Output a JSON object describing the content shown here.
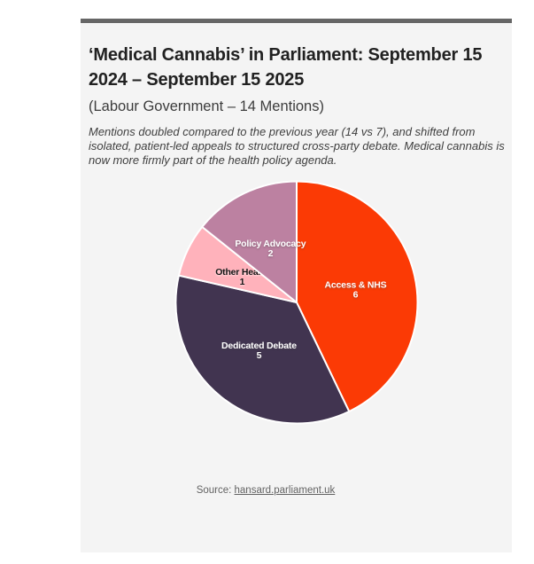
{
  "header": {
    "title": "‘Medical Cannabis’ in Parliament: September 15 2024 – September 15 2025",
    "subtitle": "(Labour Government – 14 Mentions)",
    "description": "Mentions doubled compared to the previous year (14 vs 7), and shifted from isolated, patient-led appeals to structured cross-party debate. Medical cannabis is now more firmly part of the health policy agenda."
  },
  "footer": {
    "source_label": "Source: ",
    "source_link": "hansard.parliament.uk"
  },
  "colors": {
    "page-bg": "#FFFFFF",
    "card-bg": "#F4F4F4",
    "card-top-border": "#666666",
    "title-text": "#212121",
    "subtitle-text": "#3C3C3C",
    "description-text": "#3F3F3F",
    "source-text": "#636363"
  },
  "chart_data": {
    "type": "pie",
    "title": "‘Medical Cannabis’ in Parliament: September 15 2024 – September 15 2025",
    "subtitle": "(Labour Government – 14 Mentions)",
    "total_mentions": 14,
    "start_angle_deg": 0,
    "direction": "clockwise",
    "slice_gap_stroke": "#FFFFFF",
    "label_radius_fraction": 0.5,
    "slices": [
      {
        "label": "Access & NHS",
        "value": 6,
        "color": "#FB3A05",
        "label_color": "#FFFFFF",
        "label_shadow": "rgba(70,70,70,0.45)"
      },
      {
        "label": "Dedicated Debate",
        "value": 5,
        "color": "#413450",
        "label_color": "#FFFFFF",
        "label_shadow": "rgba(70,70,70,0.45)"
      },
      {
        "label": "Other Health",
        "value": 1,
        "color": "#FFB2BB",
        "label_color": "#141414",
        "label_shadow": "rgba(255,255,255,0.7)"
      },
      {
        "label": "Policy Advocacy",
        "value": 2,
        "color": "#BC81A1",
        "label_color": "#FFFFFF",
        "label_shadow": "rgba(70,70,70,0.45)"
      }
    ],
    "source": "hansard.parliament.uk"
  }
}
